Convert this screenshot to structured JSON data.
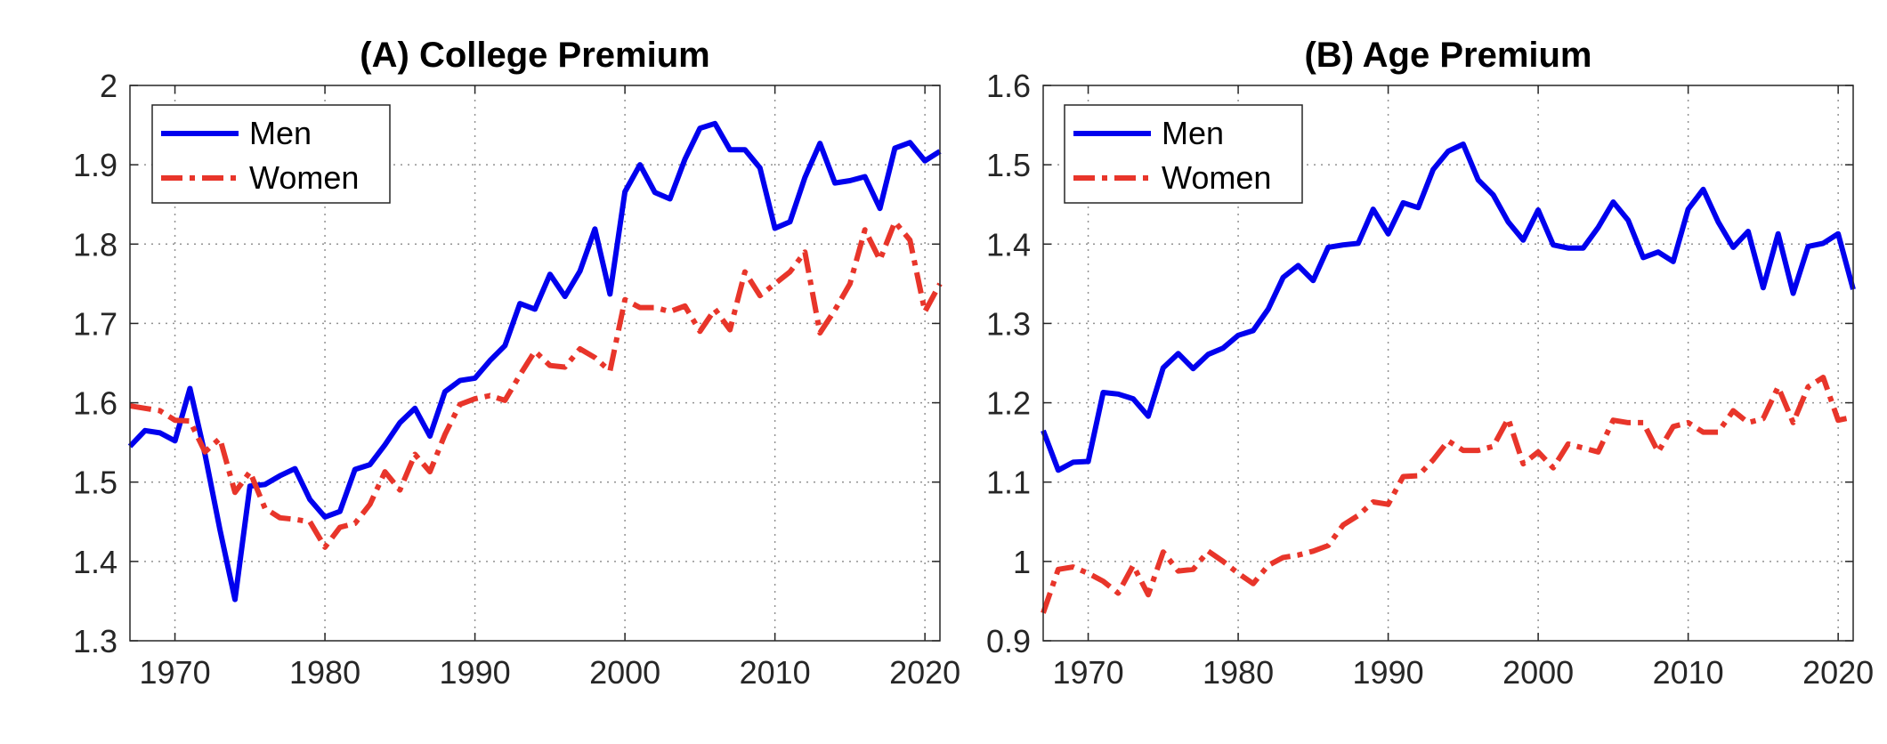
{
  "colors": {
    "men": "#0000ee",
    "women": "#e8352a"
  },
  "chart_data": [
    {
      "type": "line",
      "title": "(A) College Premium",
      "xlabel": "",
      "ylabel": "",
      "xlim": [
        1967,
        2021
      ],
      "ylim": [
        1.3,
        2.0
      ],
      "xticks": [
        "1970",
        "1980",
        "1990",
        "2000",
        "2010",
        "2020"
      ],
      "yticks": [
        "1.3",
        "1.4",
        "1.5",
        "1.6",
        "1.7",
        "1.8",
        "1.9",
        "2"
      ],
      "grid": true,
      "legend_position": "top-left",
      "x": [
        1967,
        1968,
        1969,
        1970,
        1971,
        1972,
        1973,
        1974,
        1975,
        1976,
        1977,
        1978,
        1979,
        1980,
        1981,
        1982,
        1983,
        1984,
        1985,
        1986,
        1987,
        1988,
        1989,
        1990,
        1991,
        1992,
        1993,
        1994,
        1995,
        1996,
        1997,
        1998,
        1999,
        2000,
        2001,
        2002,
        2003,
        2004,
        2005,
        2006,
        2007,
        2008,
        2009,
        2010,
        2011,
        2012,
        2013,
        2014,
        2015,
        2016,
        2017,
        2018,
        2019,
        2020,
        2021
      ],
      "series": [
        {
          "name": "Men",
          "style": "solid",
          "values": [
            1.545,
            1.565,
            1.562,
            1.552,
            1.618,
            1.535,
            1.44,
            1.352,
            1.495,
            1.497,
            1.508,
            1.517,
            1.478,
            1.456,
            1.463,
            1.516,
            1.522,
            1.547,
            1.575,
            1.593,
            1.558,
            1.614,
            1.628,
            1.631,
            1.653,
            1.672,
            1.725,
            1.718,
            1.762,
            1.734,
            1.766,
            1.819,
            1.737,
            1.866,
            1.9,
            1.865,
            1.857,
            1.907,
            1.946,
            1.952,
            1.919,
            1.919,
            1.896,
            1.82,
            1.828,
            1.884,
            1.927,
            1.877,
            1.88,
            1.885,
            1.845,
            1.921,
            1.928,
            1.905,
            1.917
          ]
        },
        {
          "name": "Women",
          "style": "dashdot",
          "values": [
            1.596,
            1.593,
            1.59,
            1.578,
            1.577,
            1.538,
            1.555,
            1.487,
            1.513,
            1.467,
            1.455,
            1.453,
            1.45,
            1.418,
            1.443,
            1.448,
            1.472,
            1.513,
            1.49,
            1.535,
            1.513,
            1.56,
            1.598,
            1.605,
            1.609,
            1.603,
            1.635,
            1.665,
            1.647,
            1.645,
            1.668,
            1.657,
            1.64,
            1.73,
            1.72,
            1.72,
            1.715,
            1.722,
            1.69,
            1.718,
            1.692,
            1.765,
            1.735,
            1.75,
            1.765,
            1.79,
            1.688,
            1.717,
            1.75,
            1.818,
            1.78,
            1.828,
            1.805,
            1.715,
            1.75
          ]
        }
      ]
    },
    {
      "type": "line",
      "title": "(B) Age Premium",
      "xlabel": "",
      "ylabel": "",
      "xlim": [
        1967,
        2021
      ],
      "ylim": [
        0.9,
        1.6
      ],
      "xticks": [
        "1970",
        "1980",
        "1990",
        "2000",
        "2010",
        "2020"
      ],
      "yticks": [
        "0.9",
        "1",
        "1.1",
        "1.2",
        "1.3",
        "1.4",
        "1.5",
        "1.6"
      ],
      "grid": true,
      "legend_position": "top-left",
      "x": [
        1967,
        1968,
        1969,
        1970,
        1971,
        1972,
        1973,
        1974,
        1975,
        1976,
        1977,
        1978,
        1979,
        1980,
        1981,
        1982,
        1983,
        1984,
        1985,
        1986,
        1987,
        1988,
        1989,
        1990,
        1991,
        1992,
        1993,
        1994,
        1995,
        1996,
        1997,
        1998,
        1999,
        2000,
        2001,
        2002,
        2003,
        2004,
        2005,
        2006,
        2007,
        2008,
        2009,
        2010,
        2011,
        2012,
        2013,
        2014,
        2015,
        2016,
        2017,
        2018,
        2019,
        2020,
        2021
      ],
      "series": [
        {
          "name": "Men",
          "style": "solid",
          "values": [
            1.165,
            1.115,
            1.125,
            1.126,
            1.213,
            1.211,
            1.205,
            1.183,
            1.244,
            1.262,
            1.243,
            1.261,
            1.269,
            1.285,
            1.291,
            1.318,
            1.358,
            1.373,
            1.354,
            1.396,
            1.399,
            1.401,
            1.444,
            1.413,
            1.452,
            1.446,
            1.494,
            1.517,
            1.526,
            1.481,
            1.462,
            1.428,
            1.405,
            1.443,
            1.399,
            1.395,
            1.395,
            1.421,
            1.453,
            1.43,
            1.383,
            1.39,
            1.378,
            1.444,
            1.469,
            1.428,
            1.396,
            1.416,
            1.345,
            1.413,
            1.338,
            1.397,
            1.401,
            1.413,
            1.343
          ]
        },
        {
          "name": "Women",
          "style": "dashdot",
          "values": [
            0.935,
            0.99,
            0.993,
            0.985,
            0.975,
            0.96,
            0.995,
            0.958,
            1.012,
            0.988,
            0.99,
            1.013,
            1.0,
            0.985,
            0.972,
            0.995,
            1.005,
            1.008,
            1.013,
            1.02,
            1.046,
            1.058,
            1.075,
            1.072,
            1.107,
            1.108,
            1.128,
            1.152,
            1.14,
            1.14,
            1.145,
            1.18,
            1.123,
            1.138,
            1.118,
            1.148,
            1.143,
            1.138,
            1.178,
            1.175,
            1.175,
            1.138,
            1.17,
            1.175,
            1.163,
            1.163,
            1.19,
            1.175,
            1.18,
            1.22,
            1.175,
            1.22,
            1.232,
            1.178,
            1.182
          ]
        }
      ]
    }
  ]
}
